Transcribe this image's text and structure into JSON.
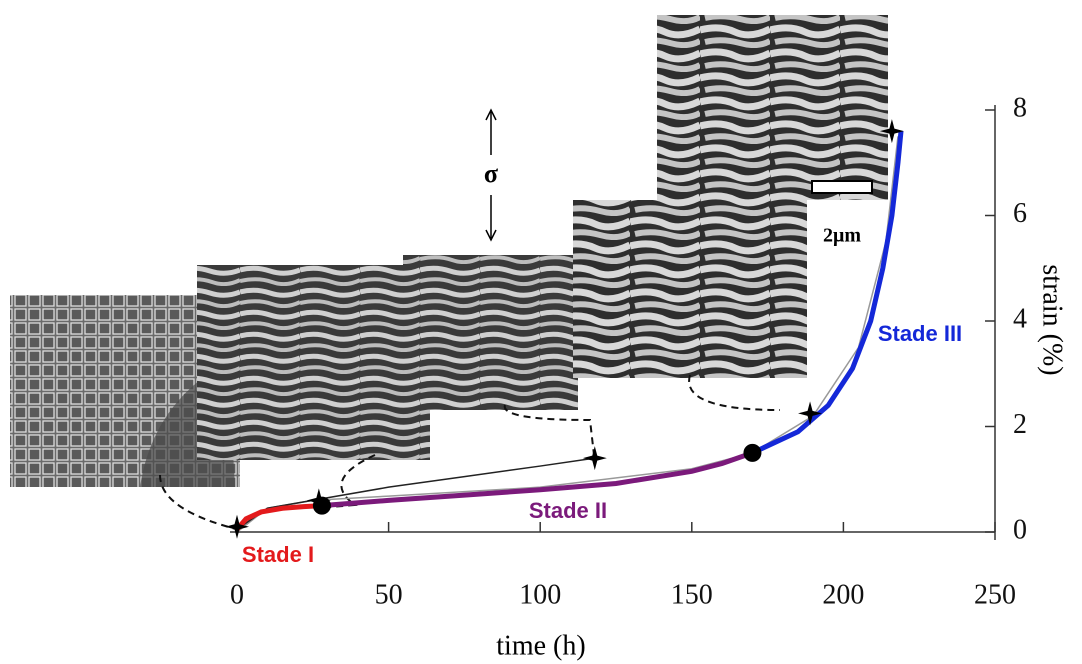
{
  "chart_data": {
    "type": "line",
    "xlabel": "time (h)",
    "ylabel": "strain (%)",
    "xlim": [
      0,
      250
    ],
    "ylim": [
      0,
      8
    ],
    "xticks": [
      0,
      50,
      100,
      150,
      200,
      250
    ],
    "yticks": [
      0,
      2,
      4,
      6,
      8
    ],
    "series": [
      {
        "color": "#999999",
        "x": [
          0,
          10,
          25,
          50,
          100,
          150,
          170,
          190,
          205,
          214,
          218
        ],
        "values": [
          0,
          0.45,
          0.6,
          0.68,
          0.85,
          1.2,
          1.5,
          2.2,
          3.5,
          5.5,
          7.5
        ]
      },
      {
        "color": "#222222",
        "x": [
          0,
          10,
          27,
          50,
          75,
          100,
          118
        ],
        "values": [
          0.05,
          0.45,
          0.62,
          0.85,
          1.05,
          1.25,
          1.4
        ]
      },
      {
        "name": "Stade I",
        "color": "#e31a1c",
        "x": [
          0,
          3,
          8,
          15,
          22,
          28
        ],
        "values": [
          0.05,
          0.25,
          0.38,
          0.45,
          0.48,
          0.5
        ]
      },
      {
        "name": "Stade II",
        "color": "#7b1a7b",
        "x": [
          28,
          50,
          75,
          100,
          125,
          150,
          160,
          170
        ],
        "values": [
          0.5,
          0.6,
          0.7,
          0.8,
          0.92,
          1.15,
          1.3,
          1.5
        ]
      },
      {
        "name": "Stade III",
        "color": "#1428d8",
        "x": [
          170,
          185,
          195,
          203,
          209,
          213,
          216,
          218,
          219
        ],
        "values": [
          1.5,
          1.9,
          2.4,
          3.1,
          4.0,
          5.0,
          6.0,
          7.0,
          7.6
        ]
      }
    ],
    "stars": {
      "x": [
        0,
        27,
        118,
        189,
        216
      ],
      "values": [
        0.1,
        0.6,
        1.4,
        2.25,
        7.6
      ]
    },
    "dots": {
      "x": [
        28,
        170
      ],
      "values": [
        0.5,
        1.5
      ]
    },
    "annotations": {
      "stress": "σ",
      "scale": "2μm"
    }
  }
}
